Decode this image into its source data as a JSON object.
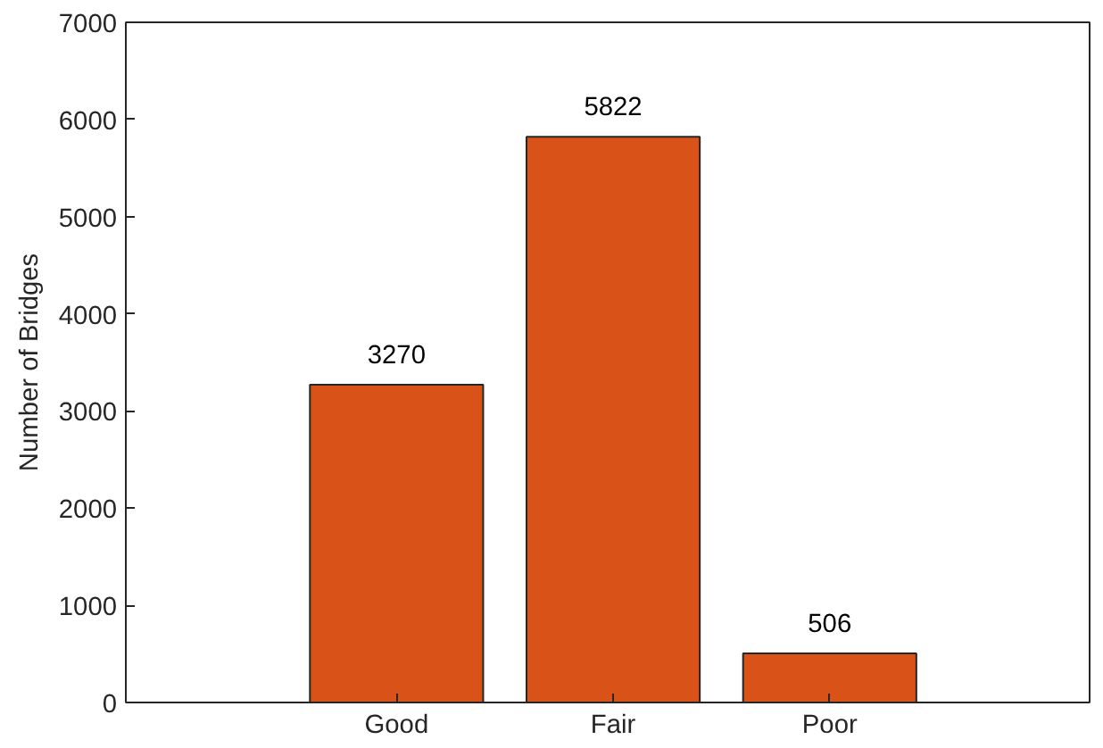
{
  "chart_data": {
    "type": "bar",
    "ylabel": "Number of Bridges",
    "categories": [
      "Good",
      "Fair",
      "Poor"
    ],
    "values": [
      3270,
      5822,
      506
    ],
    "color": "#d95319",
    "ylim": [
      0,
      7000
    ],
    "yticks": [
      0,
      1000,
      2000,
      3000,
      4000,
      5000,
      6000,
      7000
    ],
    "data_labels": true
  }
}
